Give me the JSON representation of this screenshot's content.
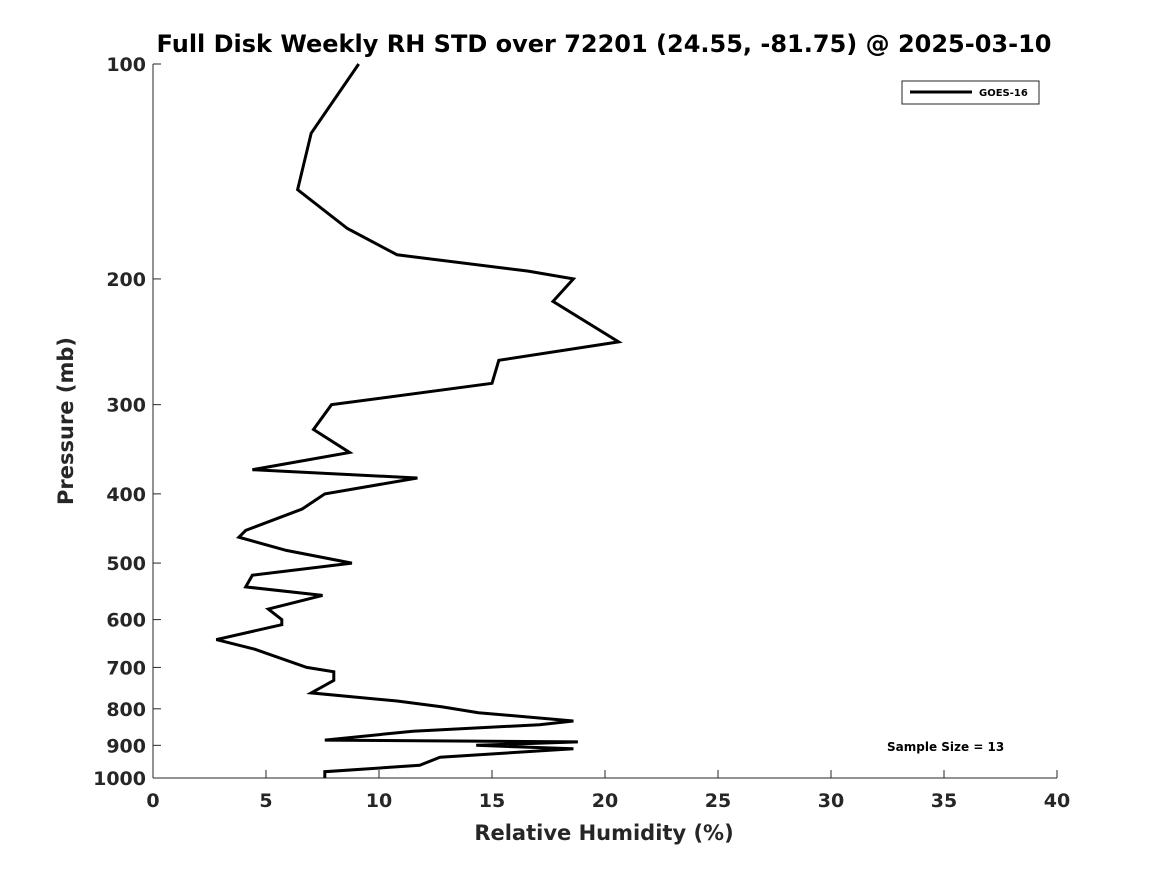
{
  "chart_data": {
    "type": "line",
    "title": "Full Disk Weekly RH STD over 72201 (24.55, -81.75) @ 2025-03-10",
    "xlabel": "Relative Humidity (%)",
    "ylabel": "Pressure (mb)",
    "xlim": [
      0,
      40
    ],
    "ylim": [
      100,
      1000
    ],
    "yscale": "log",
    "yreversed": true,
    "xticks": [
      0,
      5,
      10,
      15,
      20,
      25,
      30,
      35,
      40
    ],
    "yticks": [
      100,
      200,
      300,
      400,
      500,
      600,
      700,
      800,
      900,
      1000
    ],
    "grid": false,
    "legend_position": "top-right",
    "annotation": "Sample Size = 13",
    "series": [
      {
        "name": "GOES-16",
        "color": "#000000",
        "points": [
          [
            9.1,
            100
          ],
          [
            7.0,
            125
          ],
          [
            6.4,
            150
          ],
          [
            8.6,
            170
          ],
          [
            10.8,
            185
          ],
          [
            16.6,
            195
          ],
          [
            18.6,
            200
          ],
          [
            17.7,
            215
          ],
          [
            20.6,
            245
          ],
          [
            15.3,
            260
          ],
          [
            15.0,
            280
          ],
          [
            7.9,
            300
          ],
          [
            7.1,
            325
          ],
          [
            8.7,
            350
          ],
          [
            4.4,
            370
          ],
          [
            11.7,
            380
          ],
          [
            7.6,
            400
          ],
          [
            6.6,
            420
          ],
          [
            4.1,
            450
          ],
          [
            3.8,
            460
          ],
          [
            5.9,
            480
          ],
          [
            8.8,
            500
          ],
          [
            4.4,
            520
          ],
          [
            4.1,
            540
          ],
          [
            7.5,
            555
          ],
          [
            5.1,
            580
          ],
          [
            5.7,
            600
          ],
          [
            5.7,
            610
          ],
          [
            2.8,
            640
          ],
          [
            4.5,
            660
          ],
          [
            6.8,
            700
          ],
          [
            8.0,
            710
          ],
          [
            8.0,
            730
          ],
          [
            7.0,
            760
          ],
          [
            10.8,
            780
          ],
          [
            12.8,
            795
          ],
          [
            14.4,
            810
          ],
          [
            18.6,
            832
          ],
          [
            17.1,
            842
          ],
          [
            11.5,
            860
          ],
          [
            7.6,
            885
          ],
          [
            18.8,
            890
          ],
          [
            14.3,
            900
          ],
          [
            18.6,
            910
          ],
          [
            12.7,
            935
          ],
          [
            11.8,
            960
          ],
          [
            7.6,
            980
          ],
          [
            7.6,
            1000
          ]
        ]
      }
    ]
  }
}
